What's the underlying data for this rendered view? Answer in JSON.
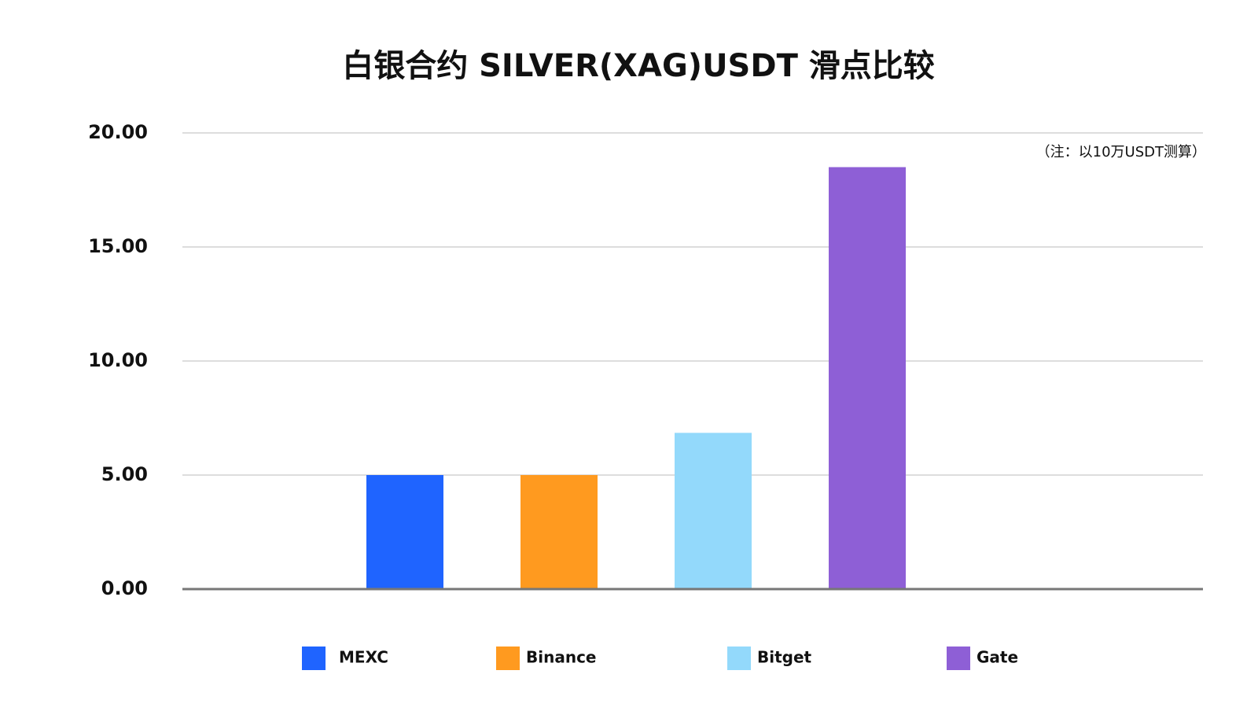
{
  "chart_data": {
    "type": "bar",
    "title": "白银合约 SILVER(XAG)USDT 滑点比较",
    "annotation": "（注：以10万USDT测算）",
    "categories": [
      null
    ],
    "series": [
      {
        "name": "MEXC",
        "color": "#1f64ff",
        "values": [
          5.0
        ]
      },
      {
        "name": "Binance",
        "color": "#ff9a1f",
        "values": [
          5.0
        ]
      },
      {
        "name": "Bitget",
        "color": "#93d9fb",
        "values": [
          6.85
        ]
      },
      {
        "name": "Gate",
        "color": "#8e5fd6",
        "values": [
          18.5
        ]
      }
    ],
    "ylim": [
      0,
      20
    ],
    "yticks": [
      {
        "value": 0,
        "label": "0.00"
      },
      {
        "value": 5,
        "label": "5.00"
      },
      {
        "value": 10,
        "label": "10.00"
      },
      {
        "value": 15,
        "label": "15.00"
      },
      {
        "value": 20,
        "label": "20.00"
      }
    ],
    "grid": true,
    "legend": "bottom"
  }
}
